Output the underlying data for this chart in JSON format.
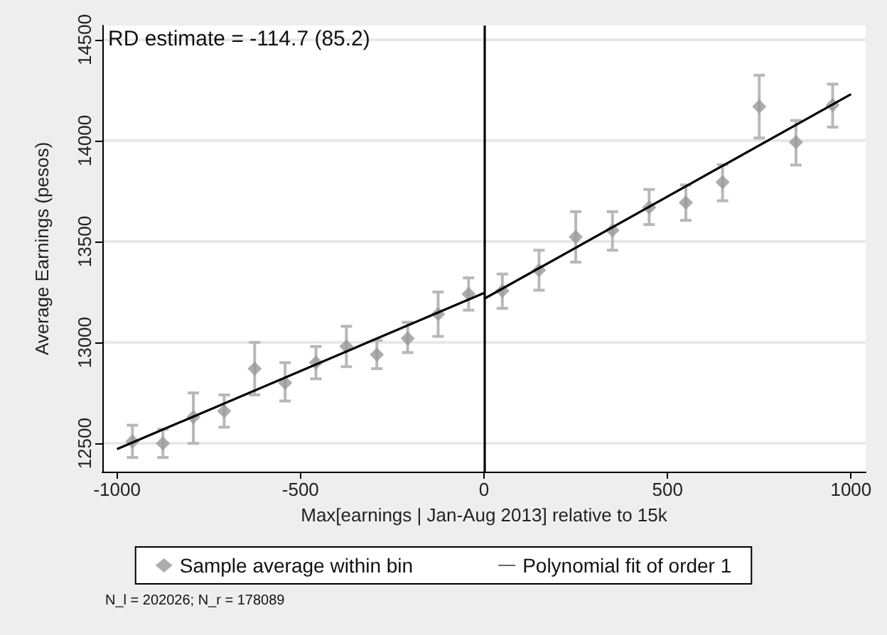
{
  "chart_data": {
    "type": "scatter",
    "xlabel": "Max[earnings | Jan-Aug 2013] relative to 15k",
    "ylabel": "Average Earnings (pesos)",
    "annotations": [
      "RD estimate = -114.7 (85.2)",
      "N_l = 202026; N_r = 178089"
    ],
    "xlim": [
      -1040,
      1040
    ],
    "xticks": [
      -1000,
      -500,
      0,
      500,
      1000
    ],
    "ylim": [
      12360,
      14570
    ],
    "yticks": [
      12500,
      13000,
      13500,
      14000,
      14500
    ],
    "grid": "y",
    "legend": "bottom",
    "ref_lines": [
      {
        "axis": "x",
        "value": 0,
        "color": "#000000"
      }
    ],
    "series": [
      {
        "name": "Sample average within bin",
        "color": "#999999",
        "marker": "diamond",
        "x": [
          -958,
          -875,
          -792,
          -708,
          -625,
          -542,
          -458,
          -375,
          -292,
          -208,
          -125,
          -42,
          50,
          150,
          250,
          350,
          450,
          550,
          650,
          750,
          850,
          950
        ],
        "values": [
          12510,
          12500,
          12630,
          12660,
          12870,
          12800,
          12900,
          12980,
          12940,
          13020,
          13140,
          13240,
          13256,
          13358,
          13523,
          13556,
          13669,
          13693,
          13794,
          14169,
          13992,
          14176
        ],
        "errors": [
          [
            12430,
            12590
          ],
          [
            12430,
            12570
          ],
          [
            12500,
            12750
          ],
          [
            12580,
            12740
          ],
          [
            12740,
            13000
          ],
          [
            12710,
            12900
          ],
          [
            12820,
            12980
          ],
          [
            12880,
            13080
          ],
          [
            12870,
            13010
          ],
          [
            12950,
            13100
          ],
          [
            13030,
            13250
          ],
          [
            13160,
            13320
          ],
          [
            13169,
            13339
          ],
          [
            13259,
            13457
          ],
          [
            13398,
            13648
          ],
          [
            13457,
            13648
          ],
          [
            13584,
            13758
          ],
          [
            13605,
            13780
          ],
          [
            13702,
            13881
          ],
          [
            14013,
            14324
          ],
          [
            13879,
            14100
          ],
          [
            14067,
            14280
          ]
        ]
      },
      {
        "name": "Polynomial fit of order 1",
        "type": "line",
        "color": "#000000",
        "marker": "none",
        "x": [
          -1000,
          0
        ],
        "values": [
          12472,
          13245
        ]
      },
      {
        "type": "line",
        "color": "#000000",
        "marker": "none",
        "x": [
          0,
          1000
        ],
        "values": [
          13216,
          14230
        ]
      }
    ]
  }
}
